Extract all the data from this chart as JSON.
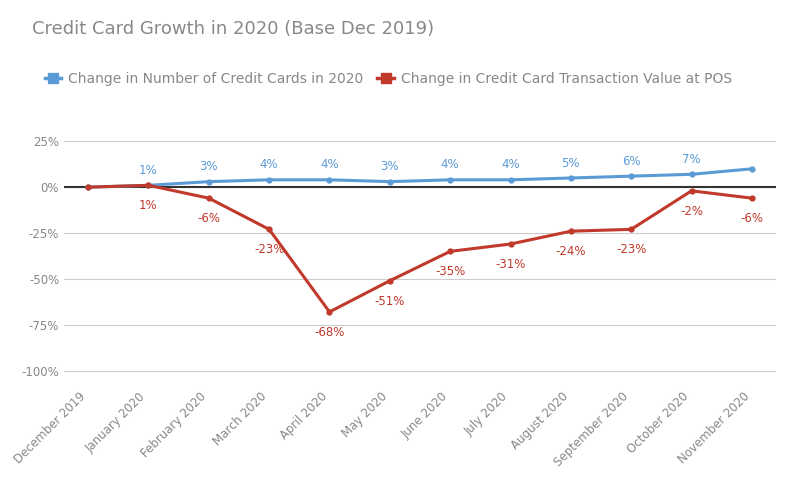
{
  "title": "Credit Card Growth in 2020 (Base Dec 2019)",
  "categories": [
    "December 2019",
    "January 2020",
    "February 2020",
    "March 2020",
    "April 2020",
    "May 2020",
    "June 2020",
    "July 2020",
    "August 2020",
    "September 2020",
    "October 2020",
    "November 2020"
  ],
  "blue_values": [
    0,
    1,
    3,
    4,
    4,
    3,
    4,
    4,
    5,
    6,
    7,
    10
  ],
  "red_values": [
    0,
    1,
    -6,
    -23,
    -68,
    -51,
    -35,
    -31,
    -24,
    -23,
    -2,
    -6
  ],
  "blue_labels": [
    "",
    "1%",
    "3%",
    "4%",
    "4%",
    "3%",
    "4%",
    "4%",
    "5%",
    "6%",
    "7%",
    ""
  ],
  "red_labels": [
    "",
    "1%",
    "-6%",
    "-23%",
    "-68%",
    "-51%",
    "-35%",
    "-31%",
    "-24%",
    "-23%",
    "-2%",
    "-6%"
  ],
  "blue_color": "#5B9BD5",
  "red_color": "#C0392B",
  "legend_blue": "Change in Number of Credit Cards in 2020",
  "legend_red": "Change in Credit Card Transaction Value at POS",
  "ylim": [
    -108,
    32
  ],
  "yticks": [
    25,
    0,
    -25,
    -50,
    -75,
    -100
  ],
  "ytick_labels": [
    "25%",
    "0%",
    "-25%",
    "-50%",
    "-75%",
    "-100%"
  ],
  "background_color": "#ffffff",
  "grid_color": "#cccccc",
  "title_fontsize": 13,
  "label_fontsize": 8.5,
  "tick_fontsize": 8.5,
  "legend_fontsize": 10,
  "line_width": 2.2,
  "title_color": "#888888",
  "tick_color": "#888888"
}
